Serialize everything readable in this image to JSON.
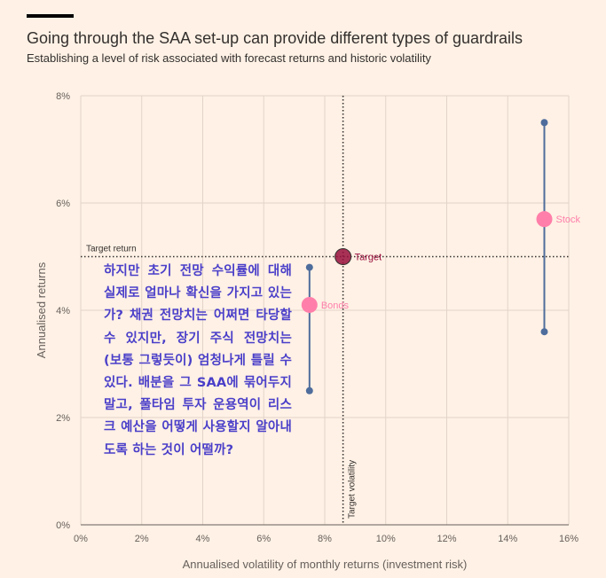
{
  "header": {
    "title": "Going through the SAA set-up can provide different types of guardrails",
    "subtitle": "Establishing a level of risk associated with forecast returns and historic volatility"
  },
  "chart_data": {
    "type": "scatter",
    "x_ticks": [
      "0%",
      "2%",
      "4%",
      "6%",
      "8%",
      "10%",
      "12%",
      "14%",
      "16%"
    ],
    "y_ticks": [
      "0%",
      "2%",
      "4%",
      "6%",
      "8%"
    ],
    "xlim": [
      0,
      16
    ],
    "ylim": [
      0,
      8
    ],
    "xlabel": "Annualised volatility of monthly returns (investment risk)",
    "ylabel": "Annualised returns",
    "points": [
      {
        "name": "Bonds",
        "x": 7.5,
        "y": 4.1,
        "low": 2.5,
        "high": 4.8
      },
      {
        "name": "Stock",
        "x": 15.2,
        "y": 5.7,
        "low": 3.6,
        "high": 7.5
      },
      {
        "name": "Target",
        "x": 8.6,
        "y": 5.0
      }
    ],
    "target_return": {
      "value": 5.0,
      "label": "Target return"
    },
    "target_volatility": {
      "value": 8.6,
      "label": "Target volatility"
    },
    "colors": {
      "background": "#fff1e5",
      "grid": "#e2d4c8",
      "range_line": "#4e6d9c",
      "point": "#ff7faa",
      "target": "#990f3d"
    }
  },
  "overlay_text": "하지만 초기 전망 수익률에 대해 실제로 얼마나 확신을 가지고 있는가? 채권 전망치는 어쩌면 타당할 수 있지만, 장기 주식 전망치는 (보통 그렇듯이) 엄청나게 틀릴 수 있다. 배분을 그 SAA에 묶어두지 말고, 풀타임 투자 운용역이 리스크 예산을 어떻게 사용할지 알아내도록 하는 것이 어떨까?"
}
